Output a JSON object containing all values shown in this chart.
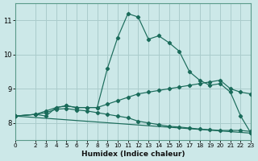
{
  "xlabel": "Humidex (Indice chaleur)",
  "background_color": "#cce8e8",
  "grid_color": "#aacccc",
  "line_color": "#1a6b5a",
  "xlim": [
    0,
    23
  ],
  "ylim": [
    7.5,
    11.5
  ],
  "xticks": [
    0,
    2,
    3,
    4,
    5,
    6,
    7,
    8,
    9,
    10,
    11,
    12,
    13,
    14,
    15,
    16,
    17,
    18,
    19,
    20,
    21,
    22,
    23
  ],
  "yticks": [
    8,
    9,
    10,
    11
  ],
  "series": [
    {
      "x": [
        0,
        2,
        3,
        4,
        5,
        6,
        7,
        8,
        9,
        10,
        11,
        12,
        13,
        14,
        15,
        16,
        17,
        18,
        19,
        20,
        21,
        22,
        23
      ],
      "y": [
        8.2,
        8.25,
        8.2,
        8.45,
        8.5,
        8.45,
        8.45,
        8.45,
        9.6,
        10.5,
        11.2,
        11.1,
        10.45,
        10.55,
        10.35,
        10.1,
        9.5,
        9.25,
        9.1,
        9.15,
        8.9,
        8.2,
        7.7
      ]
    },
    {
      "x": [
        0,
        2,
        3,
        4,
        5,
        6,
        7,
        8,
        9,
        10,
        11,
        12,
        13,
        14,
        15,
        16,
        17,
        18,
        19,
        20,
        21,
        22,
        23
      ],
      "y": [
        8.2,
        8.25,
        8.35,
        8.45,
        8.5,
        8.45,
        8.45,
        8.45,
        8.55,
        8.65,
        8.75,
        8.85,
        8.9,
        8.95,
        9.0,
        9.05,
        9.1,
        9.15,
        9.2,
        9.25,
        9.0,
        8.9,
        8.85
      ]
    },
    {
      "x": [
        0,
        2,
        3,
        4,
        5,
        6,
        7,
        8,
        9,
        10,
        11,
        12,
        13,
        14,
        15,
        16,
        17,
        18,
        19,
        20,
        21,
        22,
        23
      ],
      "y": [
        8.2,
        8.25,
        8.3,
        8.4,
        8.42,
        8.38,
        8.35,
        8.3,
        8.25,
        8.2,
        8.15,
        8.05,
        8.0,
        7.95,
        7.9,
        7.88,
        7.85,
        7.82,
        7.8,
        7.78,
        7.78,
        7.78,
        7.75
      ]
    },
    {
      "x": [
        0,
        23
      ],
      "y": [
        8.2,
        7.7
      ]
    }
  ]
}
